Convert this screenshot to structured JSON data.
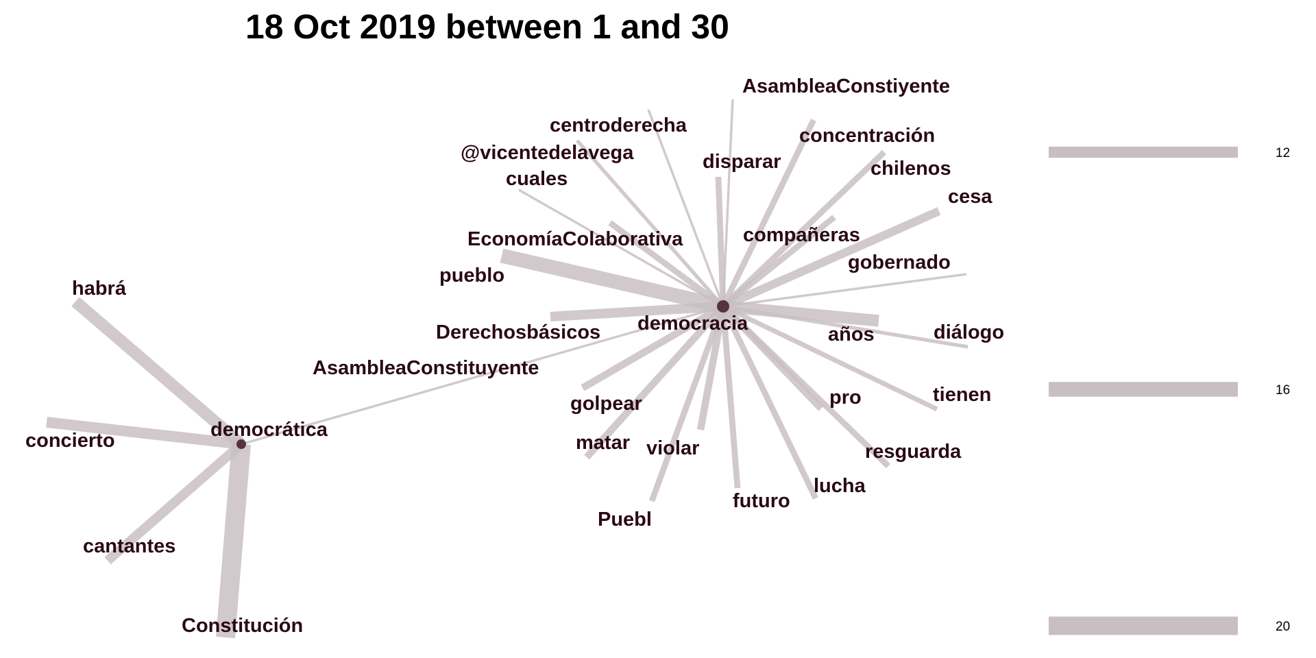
{
  "title": "18 Oct 2019 between 1 and 30",
  "colors": {
    "edge": "#c9bfc2",
    "label": "#2a0a12",
    "title": "#000000",
    "hub": "#3a0f1e"
  },
  "hubs": [
    "democracia",
    "democrática"
  ],
  "nodes": [
    "AsambleaConstiyente",
    "centroderecha",
    "concentración",
    "@vicentedelavega",
    "disparar",
    "chilenos",
    "cuales",
    "cesa",
    "compañeras",
    "EconomíaColaborativa",
    "gobernado",
    "pueblo",
    "democracia",
    "Derechosbásicos",
    "años",
    "diálogo",
    "AsambleaConstituyente",
    "golpear",
    "pro",
    "tienen",
    "matar",
    "violar",
    "resguarda",
    "lucha",
    "futuro",
    "Puebl",
    "habrá",
    "democrática",
    "concierto",
    "cantantes",
    "Constitución"
  ],
  "edges": [
    {
      "from": "democracia",
      "to": "AsambleaConstiyente",
      "weight": 2
    },
    {
      "from": "democracia",
      "to": "centroderecha",
      "weight": 2
    },
    {
      "from": "democracia",
      "to": "concentración",
      "weight": 5
    },
    {
      "from": "democracia",
      "to": "@vicentedelavega",
      "weight": 3
    },
    {
      "from": "democracia",
      "to": "disparar",
      "weight": 5
    },
    {
      "from": "democracia",
      "to": "chilenos",
      "weight": 5
    },
    {
      "from": "democracia",
      "to": "cuales",
      "weight": 2
    },
    {
      "from": "democracia",
      "to": "cesa",
      "weight": 7
    },
    {
      "from": "democracia",
      "to": "compañeras",
      "weight": 5
    },
    {
      "from": "democracia",
      "to": "EconomíaColaborativa",
      "weight": 5
    },
    {
      "from": "democracia",
      "to": "gobernado",
      "weight": 2
    },
    {
      "from": "democracia",
      "to": "pueblo",
      "weight": 12
    },
    {
      "from": "democracia",
      "to": "Derechosbásicos",
      "weight": 8
    },
    {
      "from": "democracia",
      "to": "años",
      "weight": 10
    },
    {
      "from": "democracia",
      "to": "diálogo",
      "weight": 3
    },
    {
      "from": "democracia",
      "to": "golpear",
      "weight": 6
    },
    {
      "from": "democracia",
      "to": "pro",
      "weight": 6
    },
    {
      "from": "democracia",
      "to": "tienen",
      "weight": 4
    },
    {
      "from": "democracia",
      "to": "matar",
      "weight": 6
    },
    {
      "from": "democracia",
      "to": "violar",
      "weight": 6
    },
    {
      "from": "democracia",
      "to": "resguarda",
      "weight": 5
    },
    {
      "from": "democracia",
      "to": "lucha",
      "weight": 5
    },
    {
      "from": "democracia",
      "to": "futuro",
      "weight": 5
    },
    {
      "from": "democracia",
      "to": "Puebl",
      "weight": 5
    },
    {
      "from": "democracia",
      "to": "democrática",
      "weight": 2
    },
    {
      "from": "democrática",
      "to": "habrá",
      "weight": 10
    },
    {
      "from": "democrática",
      "to": "concierto",
      "weight": 9
    },
    {
      "from": "democrática",
      "to": "cantantes",
      "weight": 8
    },
    {
      "from": "democrática",
      "to": "Constitución",
      "weight": 16
    }
  ],
  "legend": [
    {
      "label": "12",
      "value": 12
    },
    {
      "label": "16",
      "value": 16
    },
    {
      "label": "20",
      "value": 20
    }
  ]
}
